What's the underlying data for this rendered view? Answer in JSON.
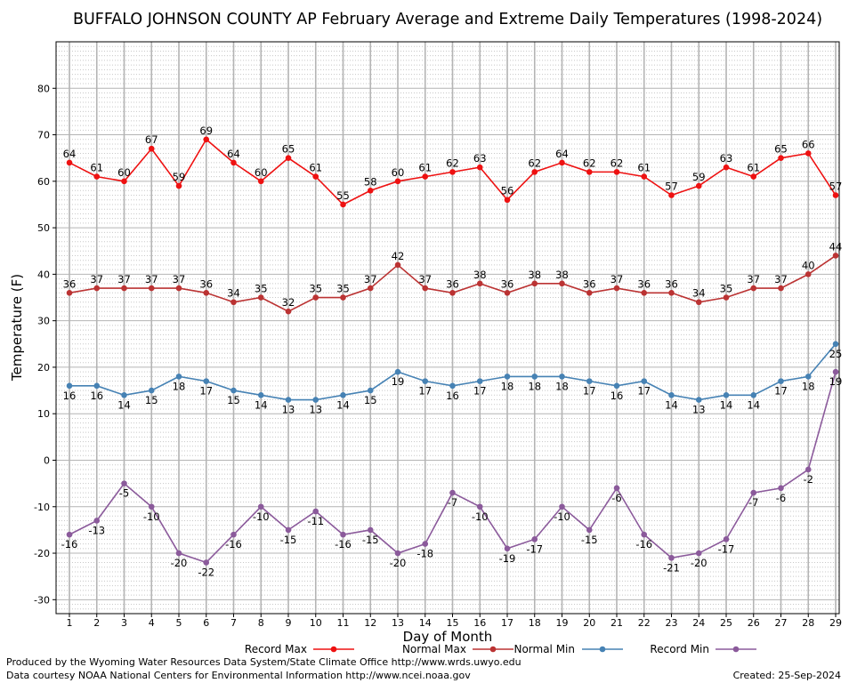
{
  "chart_data": {
    "type": "line",
    "title": "BUFFALO JOHNSON COUNTY AP February Average and Extreme Daily Temperatures (1998-2024)",
    "xlabel": "Day of Month",
    "ylabel": "Temperature (F)",
    "ylim": [
      -33,
      90
    ],
    "yticks": [
      -30,
      -20,
      -10,
      0,
      10,
      20,
      30,
      40,
      50,
      60,
      70,
      80
    ],
    "x": [
      1,
      2,
      3,
      4,
      5,
      6,
      7,
      8,
      9,
      10,
      11,
      12,
      13,
      14,
      15,
      16,
      17,
      18,
      19,
      20,
      21,
      22,
      23,
      24,
      25,
      26,
      27,
      28,
      29
    ],
    "grid": true,
    "legend_placement": "bottom",
    "series": [
      {
        "name": "Record Max",
        "color": "#ee1111",
        "values": [
          64,
          61,
          60,
          67,
          59,
          69,
          64,
          60,
          65,
          61,
          55,
          58,
          60,
          61,
          62,
          63,
          56,
          62,
          64,
          62,
          62,
          61,
          57,
          59,
          63,
          61,
          65,
          66,
          57
        ]
      },
      {
        "name": "Normal Max",
        "color": "#bb3333",
        "values": [
          36,
          37,
          37,
          37,
          37,
          36,
          34,
          35,
          32,
          35,
          35,
          37,
          42,
          37,
          36,
          38,
          36,
          38,
          38,
          36,
          37,
          36,
          36,
          34,
          35,
          37,
          37,
          40,
          44
        ]
      },
      {
        "name": "Normal Min",
        "color": "#4682b4",
        "values": [
          16,
          16,
          14,
          15,
          18,
          17,
          15,
          14,
          13,
          13,
          14,
          15,
          19,
          17,
          16,
          17,
          18,
          18,
          18,
          17,
          16,
          17,
          14,
          13,
          14,
          14,
          17,
          18,
          25
        ]
      },
      {
        "name": "Record Min",
        "color": "#8b5a9b",
        "values": [
          -16,
          -13,
          -5,
          -10,
          -20,
          -22,
          -16,
          -10,
          -15,
          -11,
          -16,
          -15,
          -20,
          -18,
          -7,
          -10,
          -19,
          -17,
          -10,
          -15,
          -6,
          -16,
          -21,
          -20,
          -17,
          -7,
          -6,
          -2,
          19
        ]
      }
    ]
  },
  "footer": {
    "produced_by": "Produced by the Wyoming Water Resources Data System/State Climate Office http://www.wrds.uwyo.edu",
    "data_courtesy": "Data courtesy NOAA National Centers for Environmental Information http://www.ncei.noaa.gov",
    "created": "Created: 25-Sep-2024"
  }
}
